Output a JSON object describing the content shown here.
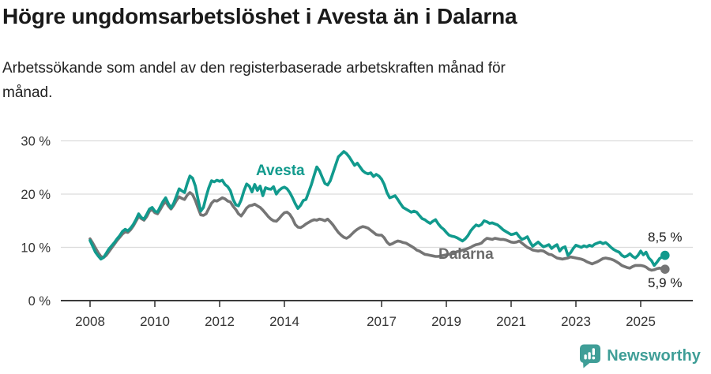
{
  "header": {
    "title": "Högre ungdomsarbetslöshet i Avesta än i Dalarna",
    "subtitle": "Arbetssökande som andel av den registerbaserade arbetskraften månad för månad."
  },
  "chart_data": {
    "type": "line",
    "title": "Högre ungdomsarbetslöshet i Avesta än i Dalarna",
    "unit": "%",
    "frequency": "monthly",
    "x_start": "2008-01",
    "x_end": "2025-10",
    "grid": "horizontal",
    "legend_position": "inline-labels",
    "ylim": [
      0,
      32
    ],
    "y_ticks": [
      {
        "value": 0,
        "label": "0 %"
      },
      {
        "value": 10,
        "label": "10 %"
      },
      {
        "value": 20,
        "label": "20 %"
      },
      {
        "value": 30,
        "label": "30 %"
      }
    ],
    "x_tick_years": [
      2008,
      2010,
      2012,
      2014,
      2017,
      2019,
      2021,
      2023,
      2025
    ],
    "x_tick_labels": [
      "2008",
      "2010",
      "2012",
      "2014",
      "2017",
      "2019",
      "2021",
      "2023",
      "2025"
    ],
    "series": [
      {
        "name": "Avesta",
        "color": "#119a8d",
        "end_label": "8,5 %",
        "end_value": 8.5,
        "values": [
          11.3,
          10.2,
          9.1,
          8.4,
          7.8,
          8.1,
          8.9,
          9.7,
          10.3,
          10.9,
          11.6,
          12.2,
          13.0,
          13.4,
          13.1,
          13.6,
          14.3,
          15.2,
          16.3,
          15.6,
          15.3,
          16.2,
          17.2,
          17.5,
          16.8,
          16.6,
          17.6,
          18.6,
          19.3,
          18.2,
          17.4,
          18.3,
          19.6,
          21.0,
          20.6,
          20.3,
          22.0,
          23.4,
          23.0,
          21.5,
          19.0,
          16.8,
          17.5,
          19.5,
          21.2,
          22.5,
          22.3,
          22.6,
          22.4,
          22.6,
          21.8,
          21.4,
          20.6,
          19.0,
          18.0,
          17.8,
          18.9,
          20.6,
          21.9,
          21.5,
          20.4,
          21.8,
          20.7,
          21.5,
          19.7,
          21.2,
          21.0,
          20.9,
          21.4,
          20.0,
          20.7,
          21.1,
          21.3,
          21.0,
          20.3,
          19.3,
          18.2,
          17.3,
          17.9,
          18.8,
          19.0,
          20.4,
          21.8,
          23.5,
          25.1,
          24.4,
          23.2,
          22.0,
          21.7,
          22.5,
          24.0,
          25.5,
          27.0,
          27.5,
          28.0,
          27.6,
          27.0,
          26.2,
          25.4,
          25.8,
          25.1,
          24.4,
          24.0,
          23.8,
          24.0,
          23.3,
          23.7,
          23.4,
          22.8,
          21.8,
          20.3,
          19.3,
          19.5,
          19.7,
          19.0,
          18.2,
          17.5,
          17.2,
          16.9,
          16.6,
          16.8,
          16.6,
          16.0,
          15.4,
          15.2,
          14.8,
          14.5,
          14.9,
          15.2,
          14.4,
          13.8,
          13.4,
          12.8,
          12.3,
          12.1,
          12.0,
          11.8,
          11.5,
          11.2,
          11.6,
          12.2,
          13.1,
          13.7,
          14.2,
          14.0,
          14.3,
          15.0,
          14.8,
          14.5,
          14.6,
          14.4,
          14.2,
          13.8,
          13.3,
          13.0,
          12.7,
          12.4,
          12.5,
          12.7,
          12.0,
          11.5,
          11.7,
          12.0,
          11.0,
          10.2,
          10.6,
          11.0,
          10.5,
          10.1,
          10.3,
          10.5,
          9.8,
          10.2,
          10.5,
          9.3,
          9.9,
          10.1,
          8.5,
          9.0,
          9.8,
          10.4,
          10.2,
          10.0,
          10.3,
          10.1,
          10.4,
          10.2,
          10.6,
          10.8,
          11.0,
          10.7,
          10.9,
          10.5,
          10.0,
          9.6,
          9.3,
          9.1,
          8.5,
          8.2,
          8.4,
          8.8,
          8.3,
          8.0,
          8.5,
          9.3,
          8.6,
          9.1,
          8.0,
          7.5,
          6.6,
          7.2,
          7.9,
          8.2,
          8.5
        ]
      },
      {
        "name": "Dalarna",
        "color": "#757575",
        "end_label": "5,9 %",
        "end_value": 5.9,
        "values": [
          11.6,
          10.8,
          9.9,
          9.0,
          8.3,
          8.1,
          8.5,
          9.2,
          9.9,
          10.6,
          11.3,
          11.9,
          12.5,
          12.9,
          12.8,
          13.3,
          14.0,
          14.9,
          15.8,
          15.4,
          15.1,
          15.8,
          16.8,
          17.1,
          16.5,
          16.3,
          17.1,
          18.0,
          18.6,
          17.8,
          17.2,
          17.9,
          18.8,
          19.5,
          19.2,
          19.0,
          19.8,
          20.3,
          19.9,
          18.8,
          17.4,
          16.1,
          16.0,
          16.3,
          17.3,
          18.3,
          18.8,
          18.7,
          19.0,
          19.3,
          19.1,
          18.7,
          18.5,
          17.7,
          17.1,
          16.3,
          15.9,
          16.6,
          17.4,
          17.8,
          17.9,
          18.1,
          17.8,
          17.5,
          17.0,
          16.4,
          15.8,
          15.3,
          15.0,
          14.9,
          15.4,
          16.0,
          16.5,
          16.6,
          16.2,
          15.4,
          14.3,
          13.8,
          13.7,
          14.0,
          14.4,
          14.7,
          15.0,
          15.2,
          15.1,
          15.3,
          15.2,
          15.0,
          15.3,
          14.8,
          14.2,
          13.5,
          12.8,
          12.3,
          11.9,
          11.7,
          12.0,
          12.5,
          13.0,
          13.4,
          13.7,
          13.9,
          13.8,
          13.6,
          13.2,
          12.8,
          12.4,
          12.3,
          12.3,
          11.8,
          11.0,
          10.5,
          10.7,
          11.0,
          11.2,
          11.1,
          10.9,
          10.8,
          10.5,
          10.2,
          9.9,
          9.5,
          9.3,
          9.0,
          8.7,
          8.6,
          8.5,
          8.4,
          8.3,
          8.3,
          8.4,
          8.5,
          8.6,
          8.7,
          8.9,
          9.0,
          9.2,
          9.3,
          9.5,
          9.6,
          9.8,
          10.0,
          10.3,
          10.5,
          10.6,
          10.8,
          11.3,
          11.7,
          11.6,
          11.5,
          11.7,
          11.6,
          11.5,
          11.5,
          11.4,
          11.2,
          11.0,
          10.9,
          11.0,
          11.2,
          10.8,
          10.4,
          10.0,
          9.8,
          9.5,
          9.4,
          9.3,
          9.4,
          9.3,
          9.0,
          8.7,
          8.6,
          8.3,
          8.0,
          7.9,
          7.8,
          7.9,
          8.0,
          8.2,
          8.1,
          8.0,
          7.9,
          7.8,
          7.6,
          7.3,
          7.1,
          6.9,
          7.1,
          7.3,
          7.6,
          7.9,
          8.0,
          7.9,
          7.8,
          7.6,
          7.3,
          7.0,
          6.6,
          6.4,
          6.2,
          6.1,
          6.4,
          6.6,
          6.6,
          6.6,
          6.5,
          6.3,
          5.9,
          5.7,
          5.8,
          6.0,
          6.1,
          6.0,
          5.9
        ]
      }
    ]
  },
  "footer": {
    "brand": "Newsworthy",
    "brand_color": "#3f9e97",
    "logo_icon": "speech-bubble-bar-chart-icon"
  }
}
